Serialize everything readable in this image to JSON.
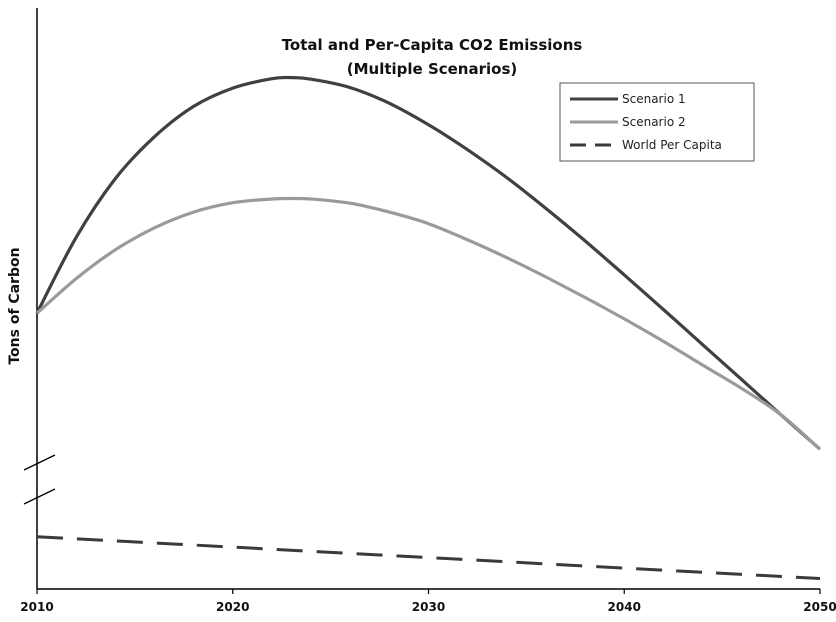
{
  "chart_data": {
    "type": "line",
    "title": "Total and Per-Capita CO2 Emissions",
    "subtitle": "(Multiple Scenarios)",
    "xlabel": "",
    "ylabel": "Tons of Carbon",
    "xlim": [
      2010,
      2050
    ],
    "x_ticks": [
      "2010",
      "2020",
      "2030",
      "2040",
      "2050"
    ],
    "y_tick_labels": false,
    "y_axis_break": true,
    "grid": false,
    "legend_position": "top-right",
    "series": [
      {
        "name": "Scenario 1",
        "color": "#404040",
        "style": "solid",
        "x": [
          2010,
          2012,
          2014,
          2016,
          2018,
          2020,
          2022,
          2023,
          2024,
          2026,
          2028,
          2030,
          2032,
          2034,
          2036,
          2038,
          2040,
          2042,
          2044,
          2046,
          2048,
          2050
        ],
        "y": [
          5.27,
          6.72,
          7.84,
          8.64,
          9.22,
          9.57,
          9.75,
          9.77,
          9.74,
          9.58,
          9.28,
          8.87,
          8.39,
          7.86,
          7.27,
          6.65,
          6.0,
          5.34,
          4.67,
          4.0,
          3.33,
          2.67
        ]
      },
      {
        "name": "Scenario 2",
        "color": "#9a9a9a",
        "style": "solid",
        "x": [
          2010,
          2012,
          2014,
          2016,
          2018,
          2020,
          2022,
          2023,
          2024,
          2026,
          2028,
          2030,
          2032,
          2034,
          2036,
          2038,
          2040,
          2042,
          2044,
          2046,
          2048,
          2050
        ],
        "y": [
          5.27,
          5.93,
          6.48,
          6.9,
          7.2,
          7.38,
          7.45,
          7.46,
          7.45,
          7.37,
          7.2,
          6.98,
          6.67,
          6.33,
          5.96,
          5.57,
          5.16,
          4.73,
          4.28,
          3.83,
          3.33,
          2.67
        ]
      },
      {
        "name": "World Per Capita",
        "color": "#3a3a3a",
        "style": "dashed",
        "x": [
          2010,
          2020,
          2030,
          2040,
          2050
        ],
        "y": [
          1.0,
          0.8,
          0.6,
          0.4,
          0.2
        ]
      }
    ]
  }
}
